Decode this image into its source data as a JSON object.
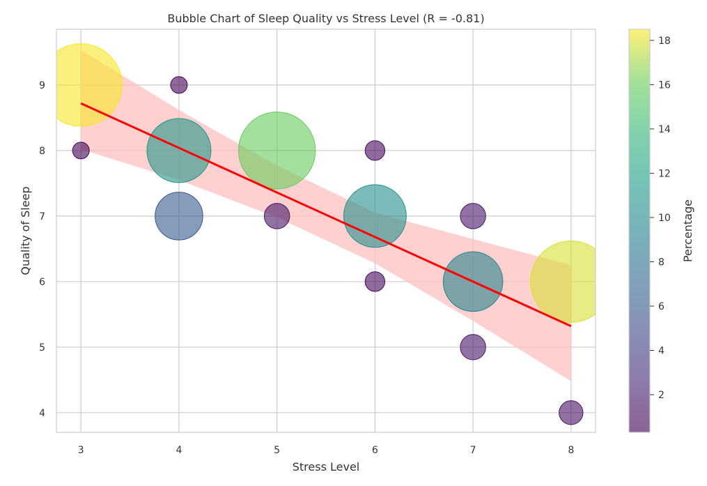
{
  "chart_data": {
    "type": "scatter",
    "title": "Bubble Chart of Sleep Quality vs Stress Level (R = -0.81)",
    "xlabel": "Stress Level",
    "ylabel": "Quality of Sleep",
    "xlim": [
      2.75,
      8.25
    ],
    "ylim": [
      3.7,
      9.85
    ],
    "xticks": [
      3,
      4,
      5,
      6,
      7,
      8
    ],
    "yticks": [
      4,
      5,
      6,
      7,
      8,
      9
    ],
    "grid": true,
    "colorbar": {
      "label": "Percentage",
      "range": [
        0.3,
        18.5
      ],
      "ticks": [
        2,
        4,
        6,
        8,
        10,
        12,
        14,
        16,
        18
      ],
      "colormap": "viridis",
      "alpha": 0.6
    },
    "points": [
      {
        "x": 3,
        "y": 9,
        "percentage": 18.4
      },
      {
        "x": 3,
        "y": 8,
        "percentage": 0.5
      },
      {
        "x": 4,
        "y": 9,
        "percentage": 0.5
      },
      {
        "x": 4,
        "y": 8,
        "percentage": 11.0
      },
      {
        "x": 4,
        "y": 7,
        "percentage": 6.0
      },
      {
        "x": 5,
        "y": 8,
        "percentage": 16.0
      },
      {
        "x": 5,
        "y": 7,
        "percentage": 1.5
      },
      {
        "x": 6,
        "y": 8,
        "percentage": 0.8
      },
      {
        "x": 6,
        "y": 7,
        "percentage": 10.5
      },
      {
        "x": 6,
        "y": 6,
        "percentage": 0.8
      },
      {
        "x": 7,
        "y": 7,
        "percentage": 1.5
      },
      {
        "x": 7,
        "y": 6,
        "percentage": 9.5
      },
      {
        "x": 7,
        "y": 5,
        "percentage": 1.5
      },
      {
        "x": 8,
        "y": 6,
        "percentage": 17.9
      },
      {
        "x": 8,
        "y": 4,
        "percentage": 1.3
      }
    ],
    "regression": {
      "color": "#ff0000",
      "line": [
        [
          3,
          8.72
        ],
        [
          8,
          5.32
        ]
      ],
      "ci_upper": [
        [
          3,
          9.53
        ],
        [
          4,
          8.62
        ],
        [
          5,
          7.77
        ],
        [
          6,
          7.05
        ],
        [
          7,
          6.65
        ],
        [
          8,
          6.25
        ]
      ],
      "ci_lower": [
        [
          3,
          8.02
        ],
        [
          4,
          7.55
        ],
        [
          5,
          6.98
        ],
        [
          6,
          6.28
        ],
        [
          7,
          5.4
        ],
        [
          8,
          4.48
        ]
      ],
      "ci_color": "#ffc0c0"
    },
    "colors": {
      "grid": "#cccccc",
      "spine": "#cccccc",
      "text": "#333333"
    }
  }
}
